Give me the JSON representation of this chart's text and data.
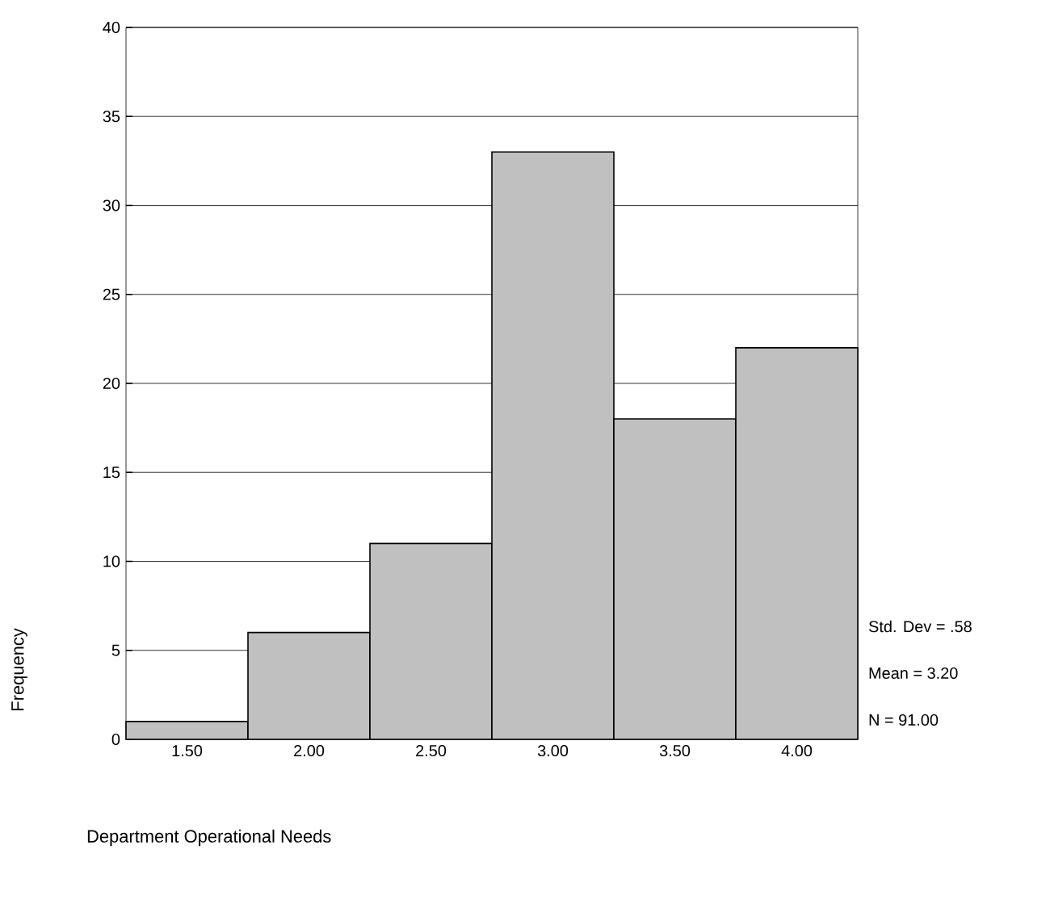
{
  "chart_data": {
    "type": "histogram",
    "bins": [
      1.25,
      1.75,
      2.25,
      2.75,
      3.25,
      3.75,
      4.25
    ],
    "values": [
      1,
      6,
      11,
      33,
      18,
      22
    ],
    "color": "#c0c0c0",
    "xlim": [
      1.25,
      4.25
    ],
    "xticks": [
      {
        "value": 1.5,
        "label": "1.50"
      },
      {
        "value": 2,
        "label": "2.00"
      },
      {
        "value": 2.5,
        "label": "2.50"
      },
      {
        "value": 3,
        "label": "3.00"
      },
      {
        "value": 3.5,
        "label": "3.50"
      },
      {
        "value": 4,
        "label": "4.00"
      }
    ],
    "ylim": [
      0,
      40
    ],
    "yticks": [
      0,
      5,
      10,
      15,
      20,
      25,
      30,
      35,
      40
    ],
    "grid": "y",
    "xlabel": "Department Operational Needs",
    "ylabel": "Frequency",
    "annotations": [
      "Std. Dev = .58",
      "Mean = 3.20",
      "N = 91.00"
    ]
  }
}
